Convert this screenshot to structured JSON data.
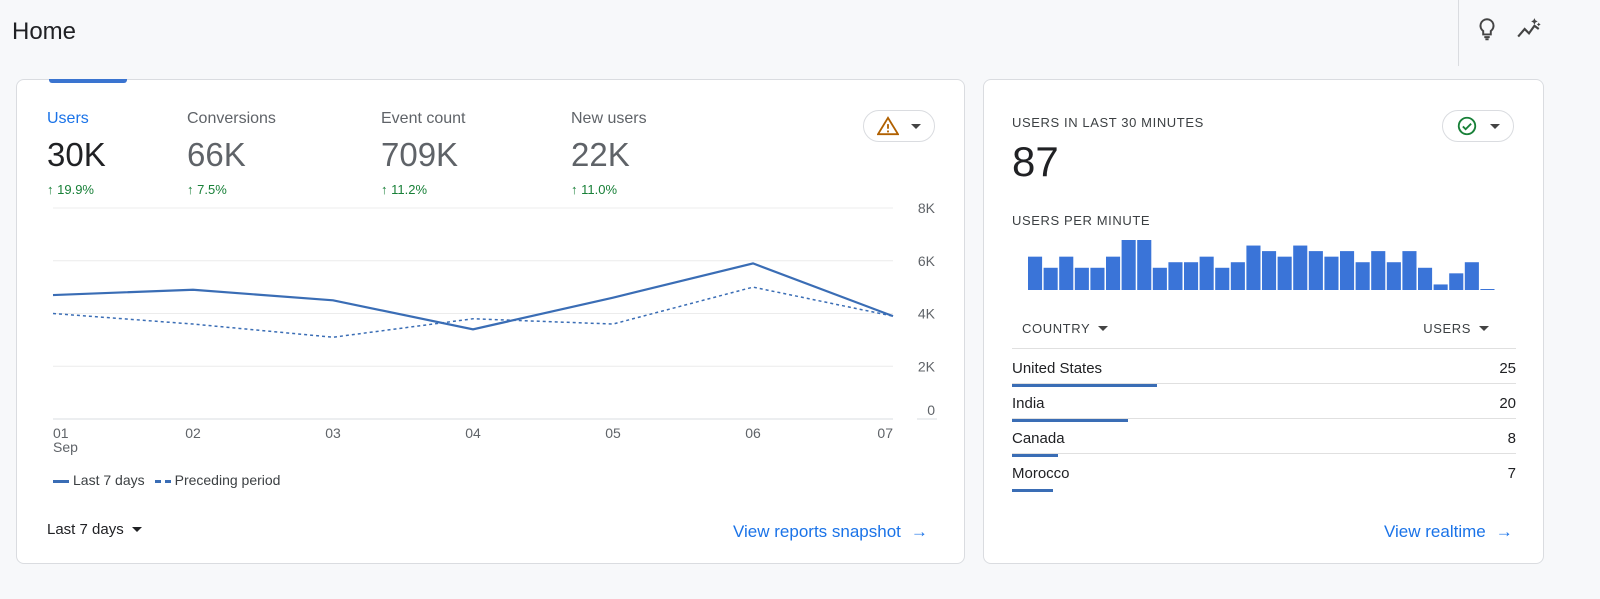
{
  "header": {
    "title": "Home",
    "icons": [
      "lightbulb-icon",
      "insights-icon"
    ]
  },
  "overview": {
    "metrics": [
      {
        "label": "Users",
        "value": "30K",
        "change": "19.9%",
        "active": true
      },
      {
        "label": "Conversions",
        "value": "66K",
        "change": "7.5%"
      },
      {
        "label": "Event count",
        "value": "709K",
        "change": "11.2%"
      },
      {
        "label": "New users",
        "value": "22K",
        "change": "11.0%"
      }
    ],
    "status_icon": "warning-icon",
    "legend": {
      "current": "Last 7 days",
      "previous": "Preceding period"
    },
    "range_label": "Last 7 days",
    "link": "View reports snapshot",
    "colors": {
      "accent": "#1a73e8",
      "line": "#3a6db5",
      "positive": "#188038",
      "warning": "#b06000"
    }
  },
  "chart_data": {
    "type": "line",
    "categories": [
      "01",
      "02",
      "03",
      "04",
      "05",
      "06",
      "07"
    ],
    "x_sublabel": "Sep",
    "y_ticks": [
      "0",
      "2K",
      "4K",
      "6K",
      "8K"
    ],
    "ylim": [
      0,
      8000
    ],
    "grid": true,
    "legend_placement": "bottom-left",
    "series": [
      {
        "name": "Last 7 days",
        "style": "solid",
        "values": [
          4700,
          4900,
          4500,
          3400,
          4600,
          5900,
          3900
        ]
      },
      {
        "name": "Preceding period",
        "style": "dashed",
        "values": [
          4000,
          3600,
          3100,
          3800,
          3600,
          5000,
          3900
        ]
      }
    ]
  },
  "realtime": {
    "title": "USERS IN LAST 30 MINUTES",
    "value": "87",
    "status_icon": "check-circle-icon",
    "per_minute_label": "USERS PER MINUTE",
    "per_minute": [
      6,
      4,
      6,
      4,
      4,
      6,
      9,
      9,
      4,
      5,
      5,
      6,
      4,
      5,
      8,
      7,
      6,
      8,
      7,
      6,
      7,
      5,
      7,
      5,
      7,
      4,
      1,
      3,
      5,
      0
    ],
    "col_country": "COUNTRY",
    "col_users": "USERS",
    "rows": [
      {
        "country": "United States",
        "users": "25",
        "n": 25
      },
      {
        "country": "India",
        "users": "20",
        "n": 20
      },
      {
        "country": "Canada",
        "users": "8",
        "n": 8
      },
      {
        "country": "Morocco",
        "users": "7",
        "n": 7
      }
    ],
    "link": "View realtime",
    "bar_color": "#3a74d8"
  }
}
